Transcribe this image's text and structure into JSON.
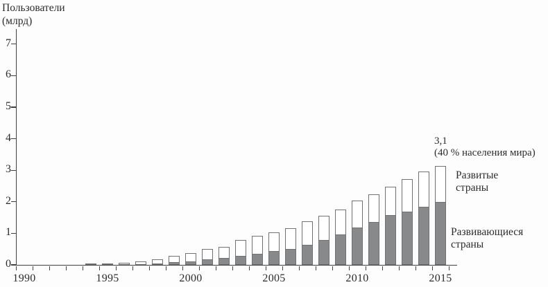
{
  "chart_data": {
    "type": "bar",
    "stacked": true,
    "title": "",
    "y_axis_title_line1": "Пользователи",
    "y_axis_title_line2": "(млрд)",
    "xlabel": "",
    "ylabel": "Пользователи (млрд)",
    "ylim": [
      0,
      7
    ],
    "yticks": [
      0,
      1,
      2,
      3,
      4,
      5,
      6,
      7
    ],
    "grid": false,
    "legend_position": "right-annotations",
    "categories": [
      1990,
      1991,
      1992,
      1993,
      1994,
      1995,
      1996,
      1997,
      1998,
      1999,
      2000,
      2001,
      2002,
      2003,
      2004,
      2005,
      2006,
      2007,
      2008,
      2009,
      2010,
      2011,
      2012,
      2013,
      2014,
      2015
    ],
    "x_tick_labels": [
      "1990",
      "1995",
      "2000",
      "2005",
      "2010",
      "2015"
    ],
    "series": [
      {
        "name": "Развивающиеся страны",
        "color": "#88898b",
        "values": [
          0.0,
          0.0,
          0.0,
          0.0,
          0.01,
          0.01,
          0.02,
          0.03,
          0.05,
          0.08,
          0.12,
          0.17,
          0.23,
          0.28,
          0.34,
          0.43,
          0.5,
          0.64,
          0.79,
          0.97,
          1.19,
          1.35,
          1.58,
          1.69,
          1.84,
          2.0
        ]
      },
      {
        "name": "Развитые страны",
        "color": "#ffffff",
        "values": [
          0.0,
          0.0,
          0.0,
          0.0,
          0.01,
          0.03,
          0.05,
          0.09,
          0.13,
          0.2,
          0.27,
          0.33,
          0.36,
          0.5,
          0.57,
          0.6,
          0.66,
          0.75,
          0.77,
          0.78,
          0.86,
          0.88,
          0.91,
          1.03,
          1.12,
          1.15
        ]
      }
    ],
    "annotation": {
      "line1": "3,1",
      "line2": "(40 % населения мира)",
      "target_year": 2015
    },
    "colors": {
      "bar_fill_developing": "#88898b",
      "bar_fill_developed": "#ffffff",
      "bar_border": "#6f7173",
      "axis": "#3f3f3f",
      "text": "#2b2b2b"
    }
  }
}
